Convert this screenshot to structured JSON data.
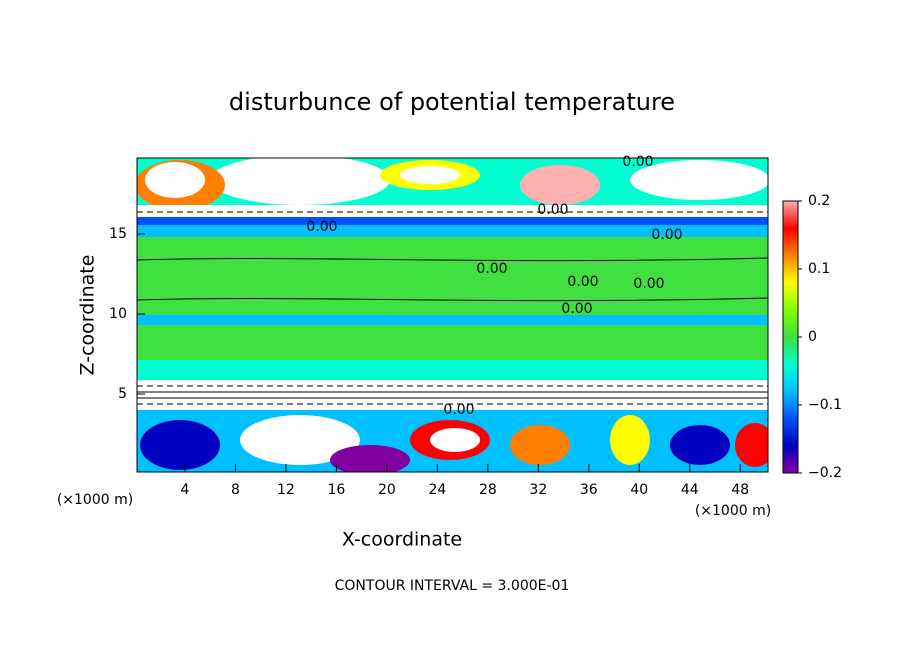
{
  "chart_data": {
    "type": "contour",
    "title": "disturbunce of potential temperature",
    "xlabel": "X-coordinate",
    "ylabel": "Z-coordinate",
    "x_unit": "(×1000 m)",
    "y_unit": "(×1000 m)",
    "footer": "CONTOUR INTERVAL = 3.000E-01",
    "xlim": [
      0,
      50
    ],
    "xticks": [
      4,
      8,
      12,
      16,
      20,
      24,
      28,
      32,
      36,
      40,
      44,
      48
    ],
    "ylim": [
      0,
      19.75
    ],
    "yticks": [
      5,
      10,
      15
    ],
    "clim": [
      -0.2,
      0.2
    ],
    "cticks": [
      {
        "value": -0.2,
        "label": "−0.2"
      },
      {
        "value": -0.1,
        "label": "−0.1"
      },
      0,
      0.1,
      0.2
    ],
    "annotations": [
      "0.00",
      "0.00",
      "0.00",
      "0.00",
      "0.00",
      "0.00",
      "0.00",
      "0.00",
      "0.00"
    ]
  }
}
